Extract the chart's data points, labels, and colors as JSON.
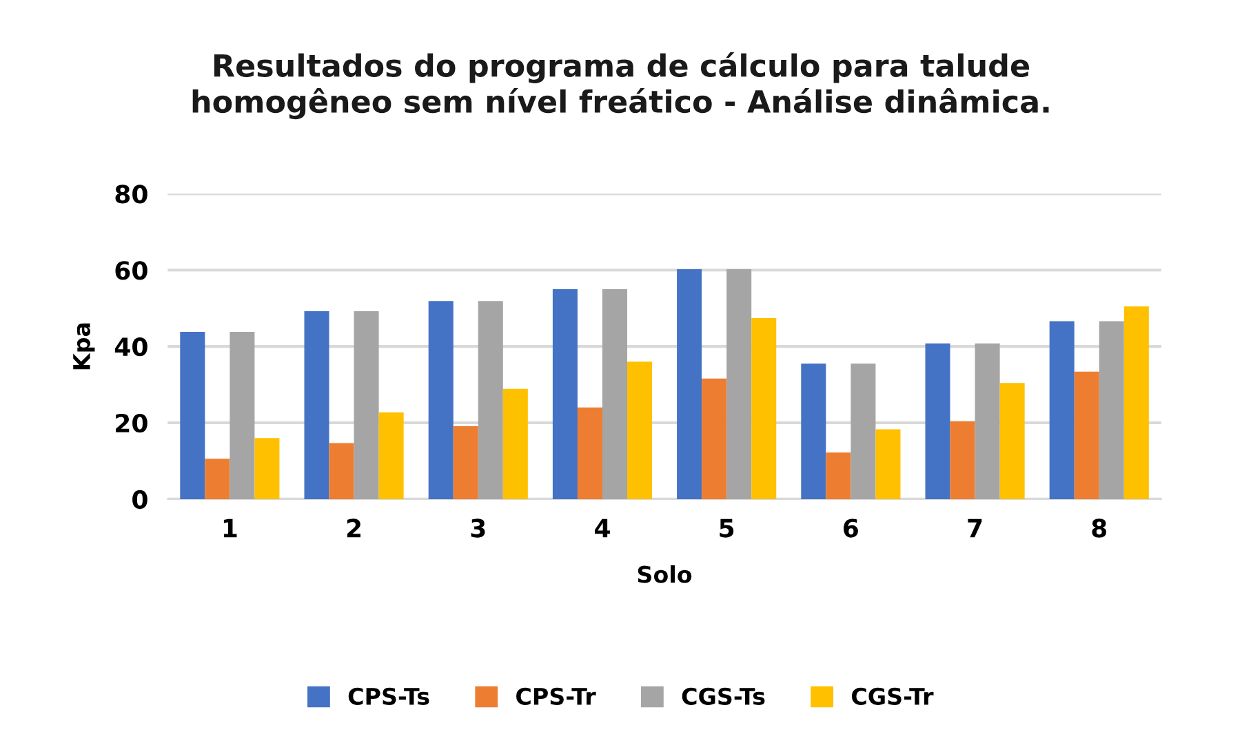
{
  "chart_data": {
    "type": "bar",
    "title": "Resultados do programa de cálculo para talude\nhomogêneo sem nível freático - Análise dinâmica.",
    "xlabel": "Solo",
    "ylabel": "Kpa",
    "categories": [
      "1",
      "2",
      "3",
      "4",
      "5",
      "6",
      "7",
      "8"
    ],
    "series": [
      {
        "name": "CPS-Ts",
        "color": "#4472c4",
        "values": [
          43.8,
          49.2,
          51.9,
          55.0,
          60.2,
          35.5,
          40.8,
          46.6
        ]
      },
      {
        "name": "CPS-Tr",
        "color": "#ed7d31",
        "values": [
          10.6,
          14.7,
          19.1,
          24.0,
          31.6,
          12.2,
          20.4,
          33.4
        ]
      },
      {
        "name": "CGS-Ts",
        "color": "#a5a5a5",
        "values": [
          43.8,
          49.2,
          51.9,
          55.0,
          60.2,
          35.5,
          40.8,
          46.6
        ]
      },
      {
        "name": "CGS-Tr",
        "color": "#ffc000",
        "values": [
          16.0,
          22.7,
          28.9,
          36.0,
          47.4,
          18.3,
          30.4,
          50.5
        ]
      }
    ],
    "ylim": [
      0,
      80
    ],
    "yticks": [
      0,
      20,
      40,
      60,
      80
    ],
    "grid": "y",
    "legend": "bottom"
  }
}
